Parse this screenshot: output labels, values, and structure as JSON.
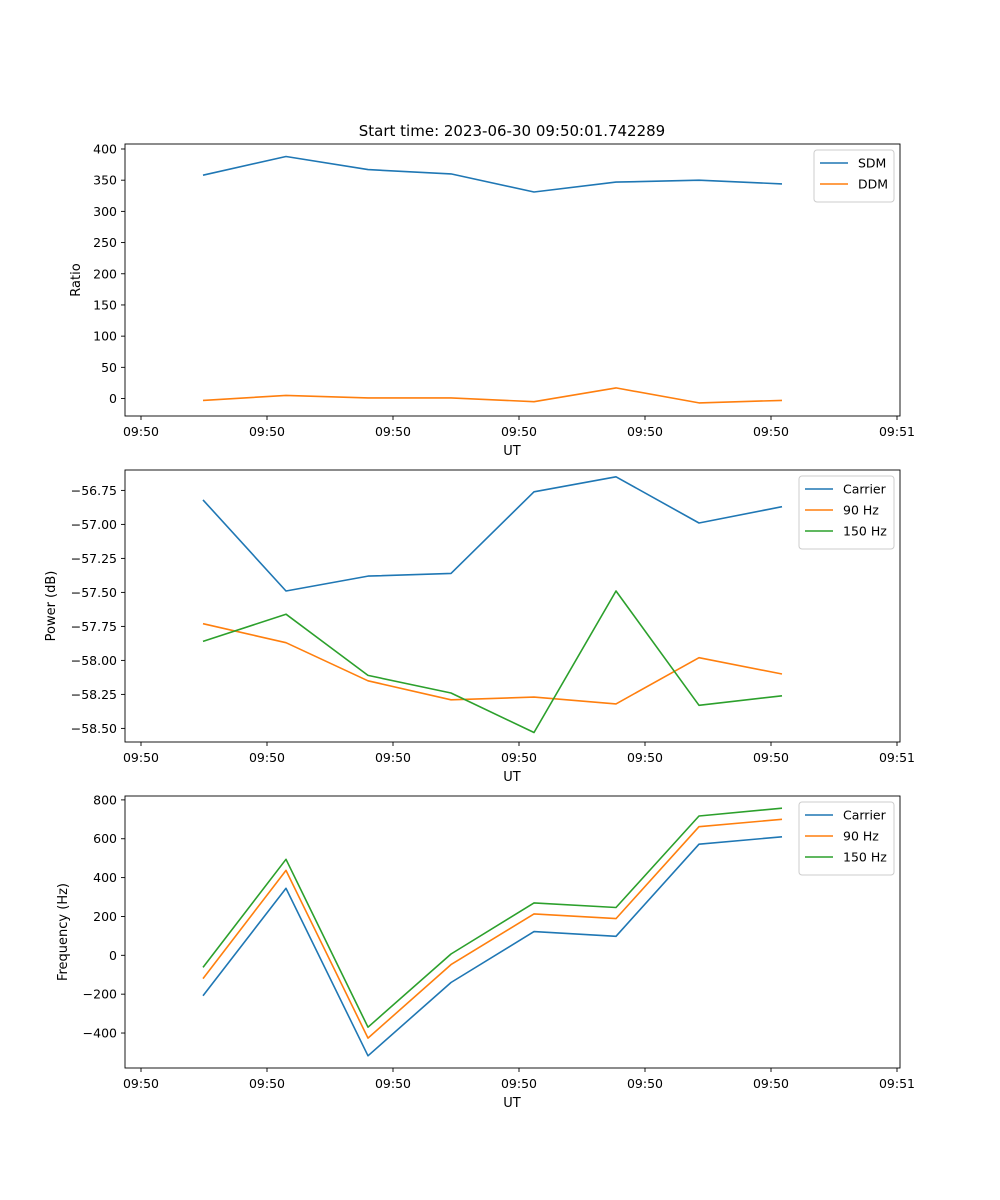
{
  "figure": {
    "title": "Start time: 2023-06-30 09:50:01.742289"
  },
  "colors": {
    "blue": "#1f77b4",
    "orange": "#ff7f0e",
    "green": "#2ca02c"
  },
  "chart_data": [
    {
      "type": "line",
      "title": "Start time: 2023-06-30 09:50:01.742289",
      "xlabel": "UT",
      "ylabel": "Ratio",
      "x_tick_labels": [
        "09:50",
        "09:50",
        "09:50",
        "09:50",
        "09:50",
        "09:50",
        "09:51"
      ],
      "y_ticks": [
        0,
        50,
        100,
        150,
        200,
        250,
        300,
        350,
        400
      ],
      "ylim": [
        -28,
        408
      ],
      "legend_position": "top-right",
      "series": [
        {
          "name": "SDM",
          "color": "#1f77b4",
          "values": [
            358,
            388,
            367,
            360,
            331,
            347,
            350,
            344
          ]
        },
        {
          "name": "DDM",
          "color": "#ff7f0e",
          "values": [
            -3,
            5,
            1,
            1,
            -5,
            17,
            -7,
            -3
          ]
        }
      ]
    },
    {
      "type": "line",
      "xlabel": "UT",
      "ylabel": "Power (dB)",
      "x_tick_labels": [
        "09:50",
        "09:50",
        "09:50",
        "09:50",
        "09:50",
        "09:50",
        "09:51"
      ],
      "y_ticks": [
        -58.5,
        -58.25,
        -58.0,
        -57.75,
        -57.5,
        -57.25,
        -57.0,
        -56.75
      ],
      "y_tick_labels": [
        "−58.50",
        "−58.25",
        "−58.00",
        "−57.75",
        "−57.50",
        "−57.25",
        "−57.00",
        "−56.75"
      ],
      "ylim": [
        -58.6,
        -56.6
      ],
      "legend_position": "top-right",
      "series": [
        {
          "name": "Carrier",
          "color": "#1f77b4",
          "values": [
            -56.82,
            -57.49,
            -57.38,
            -57.36,
            -56.76,
            -56.65,
            -56.99,
            -56.87
          ]
        },
        {
          "name": "90 Hz",
          "color": "#ff7f0e",
          "values": [
            -57.73,
            -57.87,
            -58.15,
            -58.29,
            -58.27,
            -58.32,
            -57.98,
            -58.1
          ]
        },
        {
          "name": "150 Hz",
          "color": "#2ca02c",
          "values": [
            -57.86,
            -57.66,
            -58.11,
            -58.24,
            -58.53,
            -57.49,
            -58.33,
            -58.26
          ]
        }
      ]
    },
    {
      "type": "line",
      "xlabel": "UT",
      "ylabel": "Frequency (Hz)",
      "x_tick_labels": [
        "09:50",
        "09:50",
        "09:50",
        "09:50",
        "09:50",
        "09:50",
        "09:51"
      ],
      "y_ticks": [
        -400,
        -200,
        0,
        200,
        400,
        600,
        800
      ],
      "y_tick_labels": [
        "−400",
        "−200",
        "0",
        "200",
        "400",
        "600",
        "800"
      ],
      "ylim": [
        -580,
        820
      ],
      "legend_position": "top-right",
      "series": [
        {
          "name": "Carrier",
          "color": "#1f77b4",
          "values": [
            -208,
            345,
            -517,
            -140,
            122,
            98,
            572,
            610
          ]
        },
        {
          "name": "90 Hz",
          "color": "#ff7f0e",
          "values": [
            -120,
            437,
            -426,
            -48,
            213,
            189,
            662,
            700
          ]
        },
        {
          "name": "150 Hz",
          "color": "#2ca02c",
          "values": [
            -62,
            494,
            -370,
            7,
            270,
            246,
            717,
            757
          ]
        }
      ]
    }
  ]
}
